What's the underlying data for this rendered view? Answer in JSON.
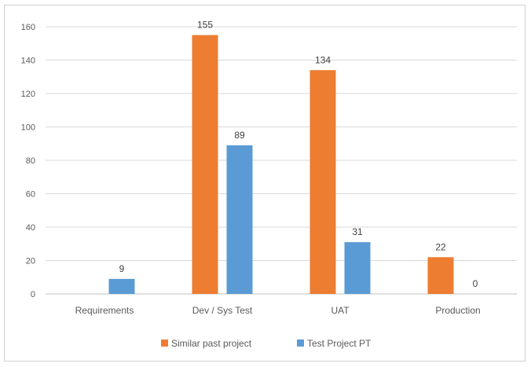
{
  "chart_data": {
    "type": "bar",
    "title": "",
    "xlabel": "",
    "ylabel": "",
    "categories": [
      "Requirements",
      "Dev / Sys Test",
      "UAT",
      "Production"
    ],
    "series": [
      {
        "name": "Similar past project",
        "color": "#ED7D31",
        "values": [
          0,
          155,
          134,
          22
        ],
        "labels": [
          "",
          "155",
          "134",
          "22"
        ]
      },
      {
        "name": "Test Project PT",
        "color": "#5B9BD5",
        "values": [
          9,
          89,
          31,
          0
        ],
        "labels": [
          "9",
          "89",
          "31",
          "0"
        ]
      }
    ],
    "ylim": [
      0,
      160
    ],
    "yticks": [
      "0",
      "20",
      "40",
      "60",
      "80",
      "100",
      "120",
      "140",
      "160"
    ],
    "grid": true,
    "legend": "bottom"
  }
}
